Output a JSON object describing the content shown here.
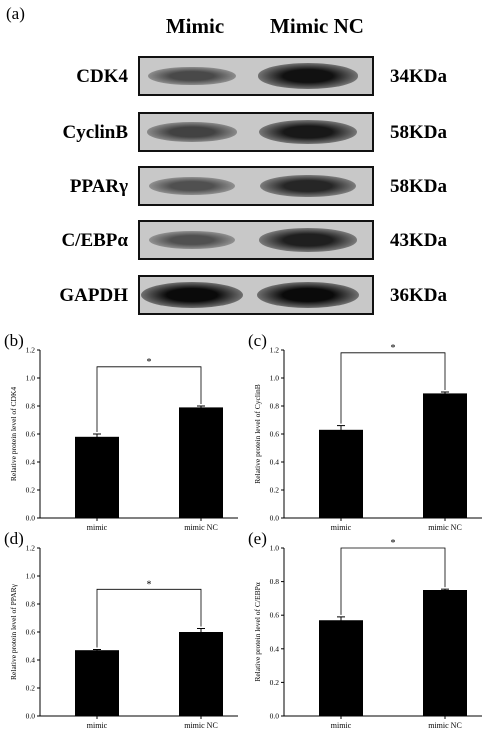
{
  "blot": {
    "panel_label": "(a)",
    "columns": [
      "Mimic",
      "Mimic NC"
    ],
    "rows": [
      {
        "protein": "CDK4",
        "size": "34KDa",
        "intensity": [
          0.55,
          0.95
        ]
      },
      {
        "protein": "CyclinB",
        "size": "58KDa",
        "intensity": [
          0.6,
          0.9
        ]
      },
      {
        "protein": "PPARγ",
        "size": "58KDa",
        "intensity": [
          0.5,
          0.8
        ]
      },
      {
        "protein": "C/EBPα",
        "size": "43KDa",
        "intensity": [
          0.5,
          0.85
        ]
      },
      {
        "protein": "GAPDH",
        "size": "36KDa",
        "intensity": [
          1.0,
          1.0
        ]
      }
    ]
  },
  "chart_data": [
    {
      "type": "bar",
      "panel": "(b)",
      "categories": [
        "mimic",
        "mimic NC"
      ],
      "values": [
        0.58,
        0.79
      ],
      "errors": [
        0.02,
        0.01
      ],
      "ylabel": "Relative protein level of CDK4",
      "ylim": [
        0,
        1.2
      ],
      "yticks": [
        "0.0",
        "0.2",
        "0.4",
        "0.6",
        "0.8",
        "1.0",
        "1.2"
      ],
      "significance": "*"
    },
    {
      "type": "bar",
      "panel": "(c)",
      "categories": [
        "mimic",
        "mimic NC"
      ],
      "values": [
        0.63,
        0.89
      ],
      "errors": [
        0.03,
        0.01
      ],
      "ylabel": "Relative protein level of CyclinB",
      "ylim": [
        0,
        1.2
      ],
      "yticks": [
        "0.0",
        "0.2",
        "0.4",
        "0.6",
        "0.8",
        "1.0",
        "1.2"
      ],
      "significance": "*"
    },
    {
      "type": "bar",
      "panel": "(d)",
      "categories": [
        "mimic",
        "mimic NC"
      ],
      "values": [
        0.47,
        0.6
      ],
      "errors": [
        0.005,
        0.025
      ],
      "ylabel": "Relative protein level of PPARγ",
      "ylim": [
        0,
        1.2
      ],
      "yticks": [
        "0.0",
        "0.2",
        "0.4",
        "0.6",
        "0.8",
        "1.0",
        "1.2"
      ],
      "significance": "*"
    },
    {
      "type": "bar",
      "panel": "(e)",
      "categories": [
        "mimic",
        "mimic NC"
      ],
      "values": [
        0.57,
        0.75
      ],
      "errors": [
        0.02,
        0.005
      ],
      "ylabel": "Relative protein level of C/EBPα",
      "ylim": [
        0,
        1.0
      ],
      "yticks": [
        "0.0",
        "0.2",
        "0.4",
        "0.6",
        "0.8",
        "1.0"
      ],
      "significance": "*"
    }
  ]
}
